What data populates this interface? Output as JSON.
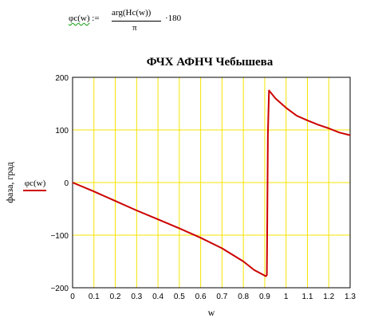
{
  "formula": {
    "lhs_fn": "φc(w)",
    "assign": ":=",
    "numerator": "arg(Hc(w))",
    "denominator": "π",
    "multiplier": "·180"
  },
  "chart_data": {
    "type": "line",
    "title": "ФЧХ АФНЧ Чебышева",
    "xlabel": "w",
    "ylabel": "фаза, град",
    "xlim": [
      0,
      1.3
    ],
    "ylim": [
      -200,
      200
    ],
    "x_ticks": [
      "0",
      "0.1",
      "0.2",
      "0.3",
      "0.4",
      "0.5",
      "0.6",
      "0.7",
      "0.8",
      "0.9",
      "1",
      "1.1",
      "1.2",
      "1.3"
    ],
    "y_ticks": [
      "200",
      "100",
      "0",
      "−100",
      "−200"
    ],
    "grid": true,
    "grid_color": "#f5e400",
    "line_color": "#cc0000",
    "legend": "left",
    "series": [
      {
        "name": "φc(w)",
        "x": [
          0,
          0.1,
          0.2,
          0.3,
          0.4,
          0.5,
          0.6,
          0.7,
          0.8,
          0.85,
          0.9,
          0.905,
          0.91,
          0.915,
          0.92,
          0.95,
          1.0,
          1.05,
          1.1,
          1.15,
          1.2,
          1.25,
          1.3
        ],
        "y": [
          0,
          -17,
          -35,
          -53,
          -70,
          -87,
          -105,
          -125,
          -150,
          -166,
          -177,
          -178,
          -176,
          92,
          175,
          160,
          142,
          127,
          118,
          110,
          103,
          95,
          90
        ]
      }
    ]
  }
}
